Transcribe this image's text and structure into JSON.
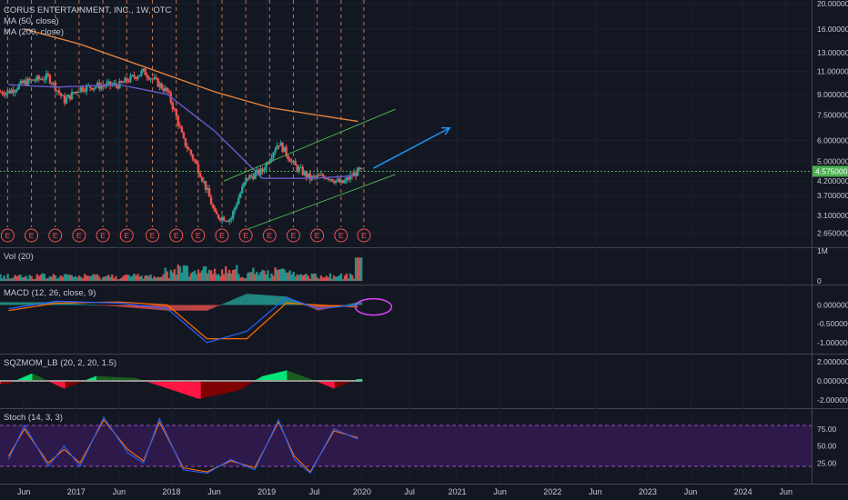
{
  "header": {
    "symbol_title": "CORUS ENTERTAINMENT, INC., 1W, OTC",
    "ma50": "MA (50, close)",
    "ma200": "MA (200, close)"
  },
  "panes": {
    "vol": "Vol (20)",
    "macd": "MACD (12, 26, close, 9)",
    "sqz": "SQZMOM_LB (20, 2, 20, 1.5)",
    "stoch": "Stoch (14, 3, 3)"
  },
  "price_label": "4.575000",
  "earnings_marker": "E",
  "colors": {
    "background": "#131722",
    "up": "#26a69a",
    "down": "#ef5350",
    "ma50": "#6a5acd",
    "ma200": "#e0823d",
    "channel": "#4caf50",
    "arrow": "#2196f3",
    "price_line": "#4caf50",
    "macd": "#2962ff",
    "signal": "#ff6d00",
    "stoch_band": "#2d1a4a"
  },
  "chart_data": [
    {
      "type": "candlestick",
      "pane": "price",
      "title": "CORUS ENTERTAINMENT, INC., 1W, OTC",
      "scale": "log",
      "ylim": [
        2.5,
        20
      ],
      "y_ticks": [
        "20.000000",
        "16.000000",
        "13.000000",
        "11.000000",
        "9.000000",
        "7.500000",
        "6.000000",
        "5.000000",
        "4.200000",
        "3.700000",
        "3.100000",
        "2.650000"
      ],
      "x_ticks": [
        "Jun",
        "2017",
        "Jun",
        "2018",
        "Jun",
        "2019",
        "Jul",
        "2020",
        "Jul",
        "2021",
        "Jun",
        "2022",
        "Jun",
        "2023",
        "Jun",
        "2024",
        "Jun"
      ],
      "close_path": [
        [
          "2016-04",
          9.2
        ],
        [
          "2016-06",
          10.0
        ],
        [
          "2016-09",
          10.5
        ],
        [
          "2016-11",
          8.5
        ],
        [
          "2017-01",
          9.5
        ],
        [
          "2017-03",
          9.7
        ],
        [
          "2017-06",
          9.8
        ],
        [
          "2017-09",
          11.0
        ],
        [
          "2017-12",
          9.2
        ],
        [
          "2018-02",
          6.0
        ],
        [
          "2018-04",
          4.6
        ],
        [
          "2018-06",
          3.1
        ],
        [
          "2018-08",
          3.0
        ],
        [
          "2018-10",
          4.3
        ],
        [
          "2018-12",
          4.6
        ],
        [
          "2019-02",
          5.9
        ],
        [
          "2019-04",
          4.8
        ],
        [
          "2019-06",
          4.3
        ],
        [
          "2019-08",
          4.4
        ],
        [
          "2019-10",
          4.1
        ],
        [
          "2019-12",
          4.575
        ]
      ],
      "last_price": 4.575,
      "series": [
        {
          "name": "MA (50, close)",
          "values": [
            [
              "2016-04",
              9.8
            ],
            [
              "2016-10",
              9.6
            ],
            [
              "2017-06",
              9.8
            ],
            [
              "2017-12",
              9.0
            ],
            [
              "2018-06",
              6.5
            ],
            [
              "2018-12",
              4.3
            ],
            [
              "2019-06",
              4.3
            ],
            [
              "2019-12",
              4.4
            ]
          ]
        },
        {
          "name": "MA (200, close)",
          "values": [
            [
              "2016-06",
              16.0
            ],
            [
              "2017-01",
              14.0
            ],
            [
              "2017-09",
              11.5
            ],
            [
              "2018-06",
              9.2
            ],
            [
              "2019-01",
              8.0
            ],
            [
              "2019-12",
              7.1
            ]
          ]
        }
      ]
    },
    {
      "type": "bar",
      "pane": "volume",
      "title": "Vol (20)",
      "y_ticks": [
        "1M",
        "0"
      ],
      "last_bar": "2019-12"
    },
    {
      "type": "line",
      "pane": "macd",
      "title": "MACD (12, 26, close, 9)",
      "ylim": [
        -1.2,
        0.4
      ],
      "y_ticks": [
        "0.000000",
        "-0.500000",
        "-1.000000"
      ],
      "series": [
        {
          "values": [
            [
              "2016-04",
              -0.1
            ],
            [
              "2016-10",
              0.1
            ],
            [
              "2017-06",
              0.05
            ],
            [
              "2017-12",
              -0.1
            ],
            [
              "2018-05",
              -1.0
            ],
            [
              "2018-10",
              -0.7
            ],
            [
              "2019-03",
              0.2
            ],
            [
              "2019-07",
              -0.1
            ],
            [
              "2019-12",
              0.0
            ]
          ]
        },
        {
          "values": [
            [
              "2016-04",
              -0.15
            ],
            [
              "2016-10",
              0.05
            ],
            [
              "2017-06",
              0.08
            ],
            [
              "2017-12",
              0.0
            ],
            [
              "2018-05",
              -0.9
            ],
            [
              "2018-10",
              -0.9
            ],
            [
              "2019-03",
              0.05
            ],
            [
              "2019-07",
              0.0
            ],
            [
              "2019-12",
              -0.05
            ]
          ]
        }
      ]
    },
    {
      "type": "bar",
      "pane": "squeeze_momentum",
      "title": "SQZMOM_LB (20, 2, 20, 1.5)",
      "ylim": [
        -2.5,
        2.5
      ],
      "y_ticks": [
        "2.000000",
        "0.000000",
        "-2.000000"
      ],
      "values": [
        [
          "2016-04",
          -0.3
        ],
        [
          "2016-07",
          0.8
        ],
        [
          "2016-11",
          -0.8
        ],
        [
          "2017-03",
          0.5
        ],
        [
          "2017-08",
          0.3
        ],
        [
          "2017-11",
          -0.5
        ],
        [
          "2018-04",
          -1.9
        ],
        [
          "2018-09",
          -1.0
        ],
        [
          "2018-12",
          0.5
        ],
        [
          "2019-03",
          1.1
        ],
        [
          "2019-07",
          -0.1
        ],
        [
          "2019-09",
          -0.8
        ],
        [
          "2019-12",
          0.2
        ]
      ]
    },
    {
      "type": "line",
      "pane": "stochastic",
      "title": "Stoch (14, 3, 3)",
      "ylim": [
        0,
        100
      ],
      "y_ticks": [
        "75.00",
        "50.00",
        "25.00"
      ],
      "band": [
        20,
        80
      ],
      "series": [
        {
          "values": [
            [
              "2016-04",
              30
            ],
            [
              "2016-06",
              80
            ],
            [
              "2016-09",
              20
            ],
            [
              "2016-11",
              50
            ],
            [
              "2017-01",
              20
            ],
            [
              "2017-04",
              92
            ],
            [
              "2017-07",
              40
            ],
            [
              "2017-09",
              25
            ],
            [
              "2017-11",
              90
            ],
            [
              "2018-02",
              15
            ],
            [
              "2018-05",
              10
            ],
            [
              "2018-08",
              30
            ],
            [
              "2018-11",
              15
            ],
            [
              "2019-02",
              88
            ],
            [
              "2019-04",
              30
            ],
            [
              "2019-06",
              10
            ],
            [
              "2019-09",
              75
            ],
            [
              "2019-12",
              60
            ]
          ]
        },
        {
          "values": [
            [
              "2016-04",
              35
            ],
            [
              "2016-06",
              75
            ],
            [
              "2016-09",
              25
            ],
            [
              "2016-11",
              45
            ],
            [
              "2017-01",
              25
            ],
            [
              "2017-04",
              88
            ],
            [
              "2017-07",
              45
            ],
            [
              "2017-09",
              28
            ],
            [
              "2017-11",
              85
            ],
            [
              "2018-02",
              18
            ],
            [
              "2018-05",
              12
            ],
            [
              "2018-08",
              28
            ],
            [
              "2018-11",
              18
            ],
            [
              "2019-02",
              85
            ],
            [
              "2019-04",
              35
            ],
            [
              "2019-06",
              12
            ],
            [
              "2019-09",
              72
            ],
            [
              "2019-12",
              62
            ]
          ]
        }
      ]
    }
  ]
}
